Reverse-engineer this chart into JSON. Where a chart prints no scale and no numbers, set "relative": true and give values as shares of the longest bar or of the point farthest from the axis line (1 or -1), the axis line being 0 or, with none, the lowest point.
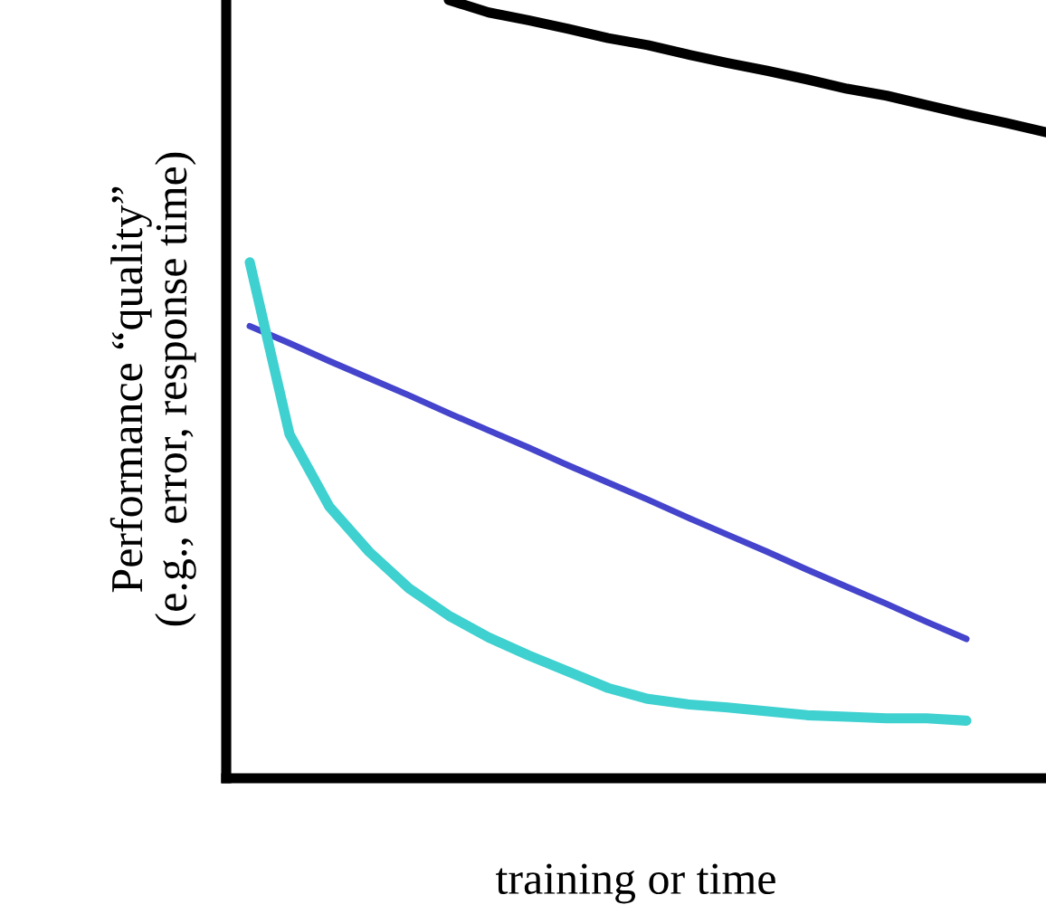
{
  "chart_data": {
    "type": "line",
    "relative": true,
    "xlabel": "training or time",
    "ylabel": "Performance “quality”\n(e.g., error, response time)",
    "grid": false,
    "legend": false,
    "marker": "none",
    "line_style": "solid",
    "categories": [
      null,
      null,
      null,
      null,
      null,
      null,
      null,
      null,
      null,
      null,
      null,
      null,
      null,
      null,
      null,
      null,
      null,
      null,
      null,
      null,
      null
    ],
    "series": [
      {
        "color": "#000000",
        "values": [
          null,
          null,
          null,
          null,
          null,
          1.0,
          0.984,
          0.974,
          0.963,
          0.951,
          0.942,
          0.93,
          0.919,
          0.909,
          0.898,
          0.886,
          0.877,
          0.865,
          0.853,
          0.842,
          0.83
        ]
      },
      {
        "color": "#4444cc",
        "values": [
          0.581,
          0.559,
          0.536,
          0.514,
          0.492,
          0.469,
          0.447,
          0.425,
          0.402,
          0.38,
          0.358,
          0.335,
          0.313,
          0.291,
          0.268,
          0.246,
          0.224,
          0.201,
          0.179,
          null,
          null
        ]
      },
      {
        "color": "#3fd0d0",
        "values": [
          0.663,
          0.442,
          0.349,
          0.291,
          0.244,
          0.209,
          0.181,
          0.158,
          0.137,
          0.116,
          0.102,
          0.095,
          0.091,
          0.086,
          0.081,
          0.079,
          0.077,
          0.077,
          0.074,
          null,
          null
        ]
      }
    ]
  }
}
